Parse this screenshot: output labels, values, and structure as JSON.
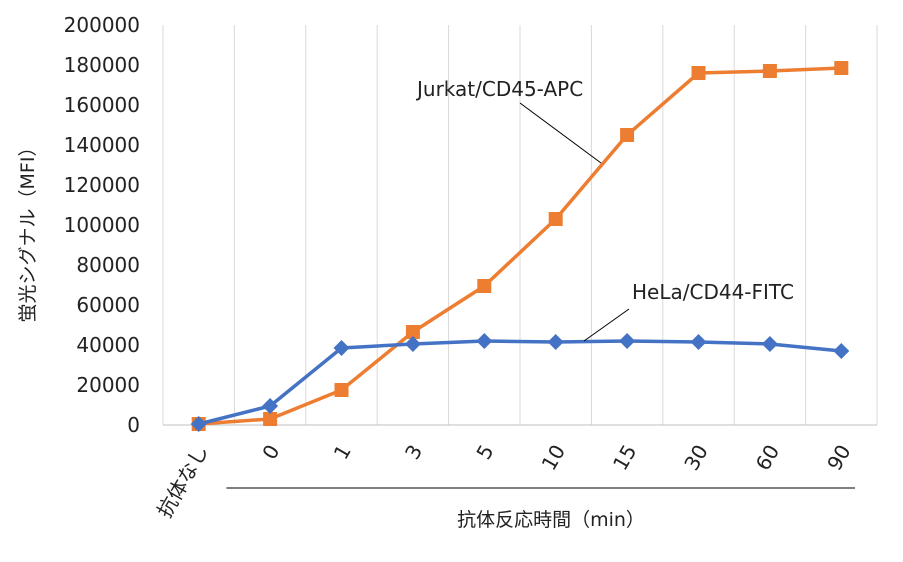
{
  "chart_data": {
    "type": "line",
    "title": "",
    "categories": [
      "抗体なし",
      "0",
      "1",
      "3",
      "5",
      "10",
      "15",
      "30",
      "60",
      "90"
    ],
    "xlabel": "抗体反応時間（min）",
    "ylabel": "蛍光シグナル（MFI）",
    "ylim": [
      0,
      200000
    ],
    "yticks": [
      0,
      20000,
      40000,
      60000,
      80000,
      100000,
      120000,
      140000,
      160000,
      180000,
      200000
    ],
    "grid": "vertical",
    "series": [
      {
        "name": "Jurkat/CD45-APC",
        "color": "#ed7d31",
        "marker": "square",
        "values": [
          500,
          3000,
          17500,
          46500,
          69500,
          103000,
          145000,
          176000,
          177000,
          178500
        ]
      },
      {
        "name": "HeLa/CD44-FITC",
        "color": "#4472c4",
        "marker": "diamond",
        "values": [
          500,
          9500,
          38500,
          40500,
          42000,
          41500,
          42000,
          41500,
          40500,
          37000
        ]
      }
    ]
  }
}
